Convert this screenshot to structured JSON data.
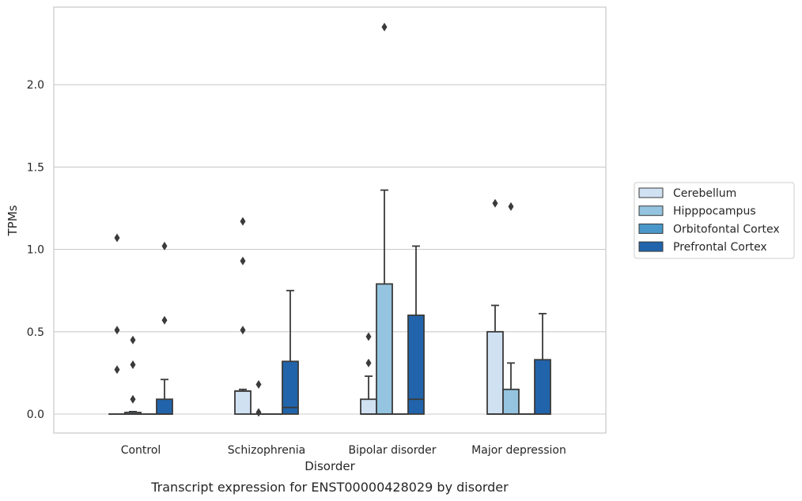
{
  "chart_data": {
    "type": "box",
    "title": "",
    "caption": "Transcript expression for ENST00000428029 by disorder",
    "xlabel": "Disorder",
    "ylabel": "TPMs",
    "ylim": [
      -0.12,
      2.47
    ],
    "yticks": [
      "0.0",
      "0.5",
      "1.0",
      "1.5",
      "2.0"
    ],
    "grid": "horizontal",
    "legend_position": "right",
    "categories": [
      "Control",
      "Schizophrenia",
      "Bipolar disorder",
      "Major depression"
    ],
    "series": [
      {
        "name": "Cerebellum",
        "color": "#d0e1f2",
        "boxes": [
          {
            "q1": 0,
            "median": 0,
            "q3": 0,
            "wlo": 0,
            "whi": 0,
            "outliers": [
              0.27,
              0.51,
              1.07
            ]
          },
          {
            "q1": 0,
            "median": 0.14,
            "q3": 0.14,
            "wlo": 0,
            "whi": 0.15,
            "outliers": [
              0.51,
              0.93,
              1.17
            ]
          },
          {
            "q1": 0,
            "median": 0,
            "q3": 0.09,
            "wlo": 0,
            "whi": 0.23,
            "outliers": [
              0.31,
              0.47
            ]
          },
          {
            "q1": 0,
            "median": 0,
            "q3": 0.5,
            "wlo": 0,
            "whi": 0.66,
            "outliers": [
              1.28
            ]
          }
        ]
      },
      {
        "name": "Hipppocampus",
        "color": "#94c4df",
        "boxes": [
          {
            "q1": 0,
            "median": 0,
            "q3": 0.01,
            "wlo": 0,
            "whi": 0.015,
            "outliers": [
              0.09,
              0.3,
              0.45
            ]
          },
          {
            "q1": 0,
            "median": 0,
            "q3": 0,
            "wlo": 0,
            "whi": 0,
            "outliers": [
              0.01,
              0.18
            ]
          },
          {
            "q1": 0,
            "median": 0,
            "q3": 0.79,
            "wlo": 0,
            "whi": 1.36,
            "outliers": [
              2.35
            ]
          },
          {
            "q1": 0,
            "median": 0,
            "q3": 0.15,
            "wlo": 0,
            "whi": 0.31,
            "outliers": [
              1.26
            ]
          }
        ]
      },
      {
        "name": "Orbitofontal Cortex",
        "color": "#4a98c9",
        "boxes": [
          {
            "q1": 0,
            "median": 0,
            "q3": 0,
            "wlo": 0,
            "whi": 0,
            "outliers": []
          },
          {
            "q1": 0,
            "median": 0,
            "q3": 0,
            "wlo": 0,
            "whi": 0,
            "outliers": []
          },
          {
            "q1": 0,
            "median": 0,
            "q3": 0,
            "wlo": 0,
            "whi": 0,
            "outliers": []
          },
          {
            "q1": 0,
            "median": 0,
            "q3": 0,
            "wlo": 0,
            "whi": 0,
            "outliers": []
          }
        ]
      },
      {
        "name": "Prefrontal Cortex",
        "color": "#2164ab",
        "boxes": [
          {
            "q1": 0,
            "median": 0,
            "q3": 0.09,
            "wlo": 0,
            "whi": 0.21,
            "outliers": [
              0.57,
              1.02
            ]
          },
          {
            "q1": 0,
            "median": 0.04,
            "q3": 0.32,
            "wlo": 0,
            "whi": 0.75,
            "outliers": []
          },
          {
            "q1": 0,
            "median": 0.09,
            "q3": 0.6,
            "wlo": 0,
            "whi": 1.02,
            "outliers": []
          },
          {
            "q1": 0,
            "median": 0,
            "q3": 0.33,
            "wlo": 0,
            "whi": 0.61,
            "outliers": []
          }
        ]
      }
    ]
  }
}
